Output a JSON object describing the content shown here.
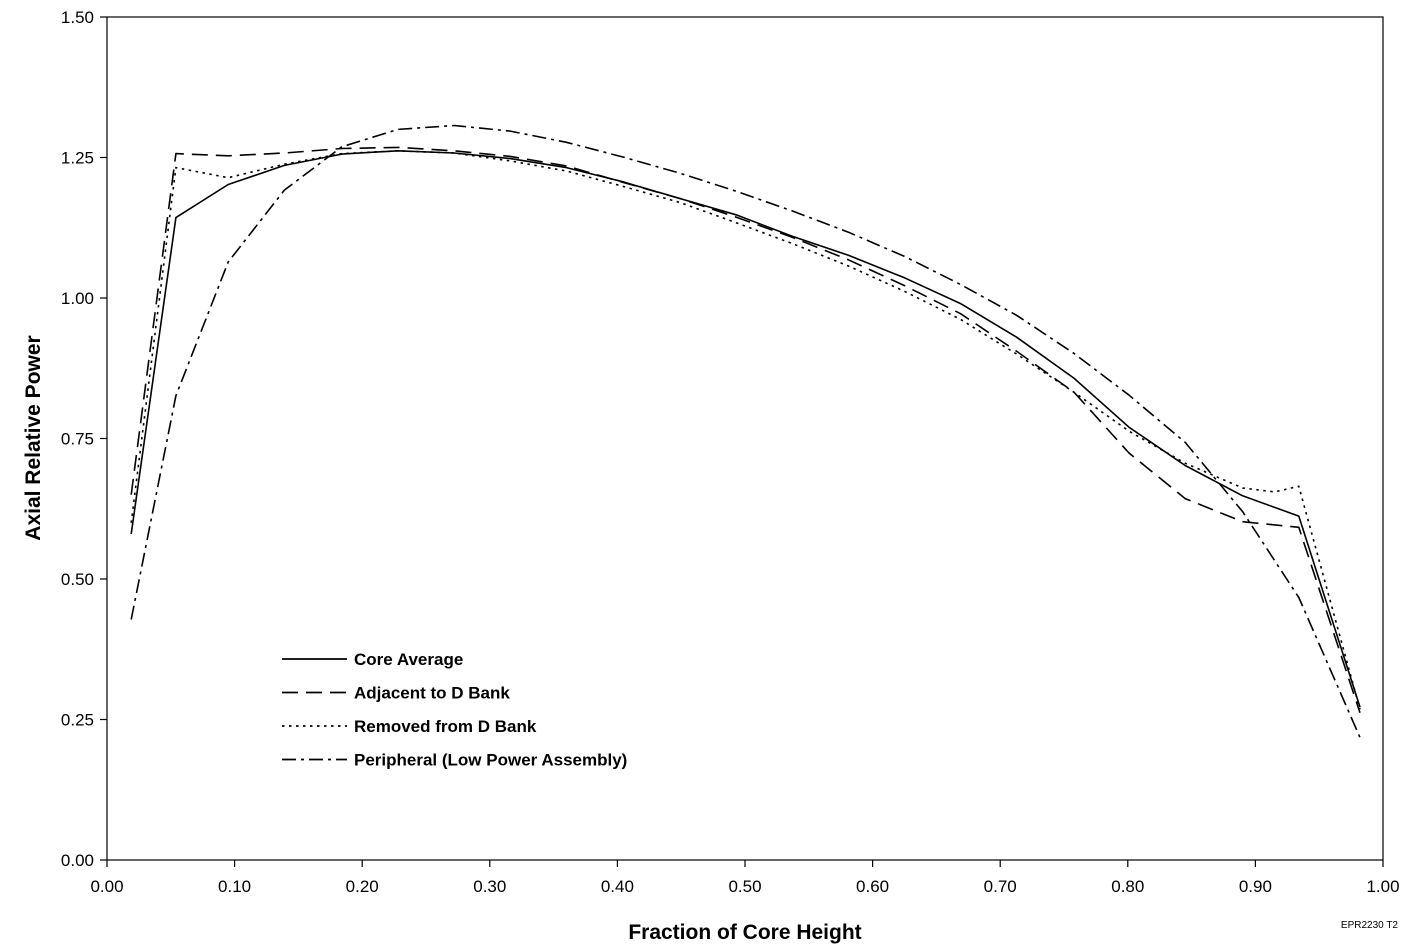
{
  "chart_data": {
    "type": "line",
    "title": "",
    "xlabel": "Fraction of Core Height",
    "ylabel": "Axial Relative Power",
    "xlim": [
      0.0,
      1.0
    ],
    "ylim": [
      0.0,
      1.5
    ],
    "x_ticks": [
      "0.00",
      "0.10",
      "0.20",
      "0.30",
      "0.40",
      "0.50",
      "0.60",
      "0.70",
      "0.80",
      "0.90",
      "1.00"
    ],
    "y_ticks": [
      "0.00",
      "0.25",
      "0.50",
      "0.75",
      "1.00",
      "1.25",
      "1.50"
    ],
    "grid": false,
    "legend_position": "lower-left",
    "stamp": "EPR2230 T2",
    "series": [
      {
        "name": "Core Average",
        "dash": "solid",
        "points": [
          [
            0.019,
            0.58
          ],
          [
            0.054,
            1.143
          ],
          [
            0.095,
            1.202
          ],
          [
            0.139,
            1.236
          ],
          [
            0.184,
            1.256
          ],
          [
            0.228,
            1.262
          ],
          [
            0.272,
            1.258
          ],
          [
            0.316,
            1.248
          ],
          [
            0.36,
            1.232
          ],
          [
            0.404,
            1.207
          ],
          [
            0.449,
            1.177
          ],
          [
            0.493,
            1.148
          ],
          [
            0.537,
            1.11
          ],
          [
            0.581,
            1.076
          ],
          [
            0.625,
            1.036
          ],
          [
            0.669,
            0.99
          ],
          [
            0.713,
            0.93
          ],
          [
            0.758,
            0.857
          ],
          [
            0.801,
            0.77
          ],
          [
            0.845,
            0.702
          ],
          [
            0.89,
            0.648
          ],
          [
            0.934,
            0.612
          ],
          [
            0.982,
            0.272
          ]
        ]
      },
      {
        "name": "Adjacent to D Bank",
        "dash": "long-dash",
        "points": [
          [
            0.019,
            0.65
          ],
          [
            0.054,
            1.257
          ],
          [
            0.095,
            1.253
          ],
          [
            0.139,
            1.258
          ],
          [
            0.184,
            1.266
          ],
          [
            0.228,
            1.268
          ],
          [
            0.272,
            1.262
          ],
          [
            0.316,
            1.252
          ],
          [
            0.36,
            1.235
          ],
          [
            0.404,
            1.206
          ],
          [
            0.449,
            1.177
          ],
          [
            0.493,
            1.144
          ],
          [
            0.537,
            1.108
          ],
          [
            0.581,
            1.068
          ],
          [
            0.625,
            1.022
          ],
          [
            0.669,
            0.972
          ],
          [
            0.713,
            0.905
          ],
          [
            0.758,
            0.832
          ],
          [
            0.801,
            0.724
          ],
          [
            0.845,
            0.643
          ],
          [
            0.89,
            0.602
          ],
          [
            0.934,
            0.592
          ],
          [
            0.982,
            0.262
          ]
        ]
      },
      {
        "name": "Removed from D Bank",
        "dash": "dotted",
        "points": [
          [
            0.019,
            0.6
          ],
          [
            0.054,
            1.232
          ],
          [
            0.095,
            1.214
          ],
          [
            0.139,
            1.238
          ],
          [
            0.184,
            1.257
          ],
          [
            0.228,
            1.262
          ],
          [
            0.272,
            1.258
          ],
          [
            0.316,
            1.244
          ],
          [
            0.36,
            1.226
          ],
          [
            0.404,
            1.199
          ],
          [
            0.449,
            1.17
          ],
          [
            0.493,
            1.134
          ],
          [
            0.537,
            1.097
          ],
          [
            0.581,
            1.057
          ],
          [
            0.625,
            1.012
          ],
          [
            0.669,
            0.962
          ],
          [
            0.713,
            0.9
          ],
          [
            0.758,
            0.832
          ],
          [
            0.801,
            0.763
          ],
          [
            0.845,
            0.706
          ],
          [
            0.89,
            0.662
          ],
          [
            0.915,
            0.655
          ],
          [
            0.934,
            0.665
          ],
          [
            0.982,
            0.268
          ]
        ]
      },
      {
        "name": "Peripheral (Low Power Assembly)",
        "dash": "dash-dot",
        "points": [
          [
            0.019,
            0.428
          ],
          [
            0.054,
            0.826
          ],
          [
            0.095,
            1.064
          ],
          [
            0.139,
            1.192
          ],
          [
            0.184,
            1.269
          ],
          [
            0.228,
            1.3
          ],
          [
            0.272,
            1.307
          ],
          [
            0.316,
            1.297
          ],
          [
            0.36,
            1.277
          ],
          [
            0.404,
            1.251
          ],
          [
            0.449,
            1.222
          ],
          [
            0.493,
            1.19
          ],
          [
            0.537,
            1.155
          ],
          [
            0.581,
            1.117
          ],
          [
            0.625,
            1.074
          ],
          [
            0.669,
            1.024
          ],
          [
            0.713,
            0.969
          ],
          [
            0.758,
            0.901
          ],
          [
            0.801,
            0.827
          ],
          [
            0.845,
            0.743
          ],
          [
            0.89,
            0.62
          ],
          [
            0.934,
            0.467
          ],
          [
            0.982,
            0.218
          ]
        ]
      }
    ]
  }
}
